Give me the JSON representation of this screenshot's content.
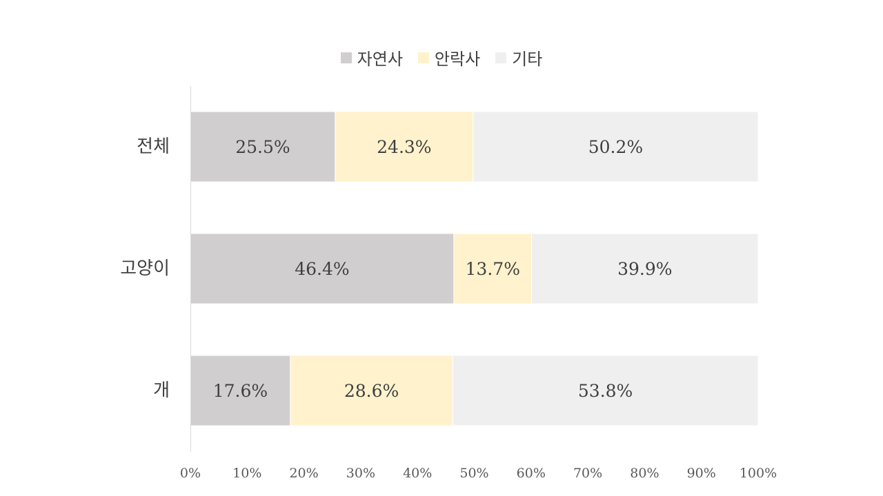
{
  "chart_data": {
    "type": "bar",
    "orientation": "horizontal",
    "stacked": "percent",
    "categories": [
      "전체",
      "고양이",
      "개"
    ],
    "series": [
      {
        "name": "자연사",
        "values": [
          25.5,
          46.4,
          17.6
        ],
        "labels": [
          "25.5%",
          "46.4%",
          "17.6%"
        ],
        "color": "#d0cecf"
      },
      {
        "name": "안락사",
        "values": [
          24.3,
          13.7,
          28.6
        ],
        "labels": [
          "24.3%",
          "13.7%",
          "28.6%"
        ],
        "color": "#fff2cc"
      },
      {
        "name": "기타",
        "values": [
          50.2,
          39.9,
          53.8
        ],
        "labels": [
          "50.2%",
          "39.9%",
          "53.8%"
        ],
        "color": "#efefef"
      }
    ],
    "xlim": [
      0,
      100
    ],
    "xticks": [
      "0%",
      "10%",
      "20%",
      "30%",
      "40%",
      "50%",
      "60%",
      "70%",
      "80%",
      "90%",
      "100%"
    ],
    "grid": false,
    "legend": "top-center",
    "title": "",
    "xlabel": "",
    "ylabel": ""
  }
}
